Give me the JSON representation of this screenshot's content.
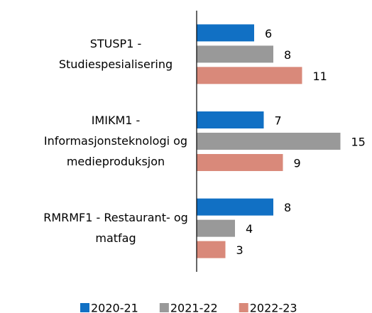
{
  "chart_data": {
    "type": "barh",
    "categories": [
      "STUSP1 -\nStudiespesialisering",
      "IMIKM1 -\nInformasjonsteknologi og\nmedieproduksjon",
      "RMRMF1 - Restaurant- og\nmatfag"
    ],
    "series": [
      {
        "name": "2020-21",
        "color": "#1170c4",
        "values": [
          6,
          7,
          8
        ]
      },
      {
        "name": "2021-22",
        "color": "#999999",
        "values": [
          8,
          15,
          4
        ]
      },
      {
        "name": "2022-23",
        "color": "#d9897a",
        "values": [
          11,
          9,
          3
        ]
      }
    ],
    "xlim": [
      0,
      16
    ],
    "legend": "bottom"
  }
}
